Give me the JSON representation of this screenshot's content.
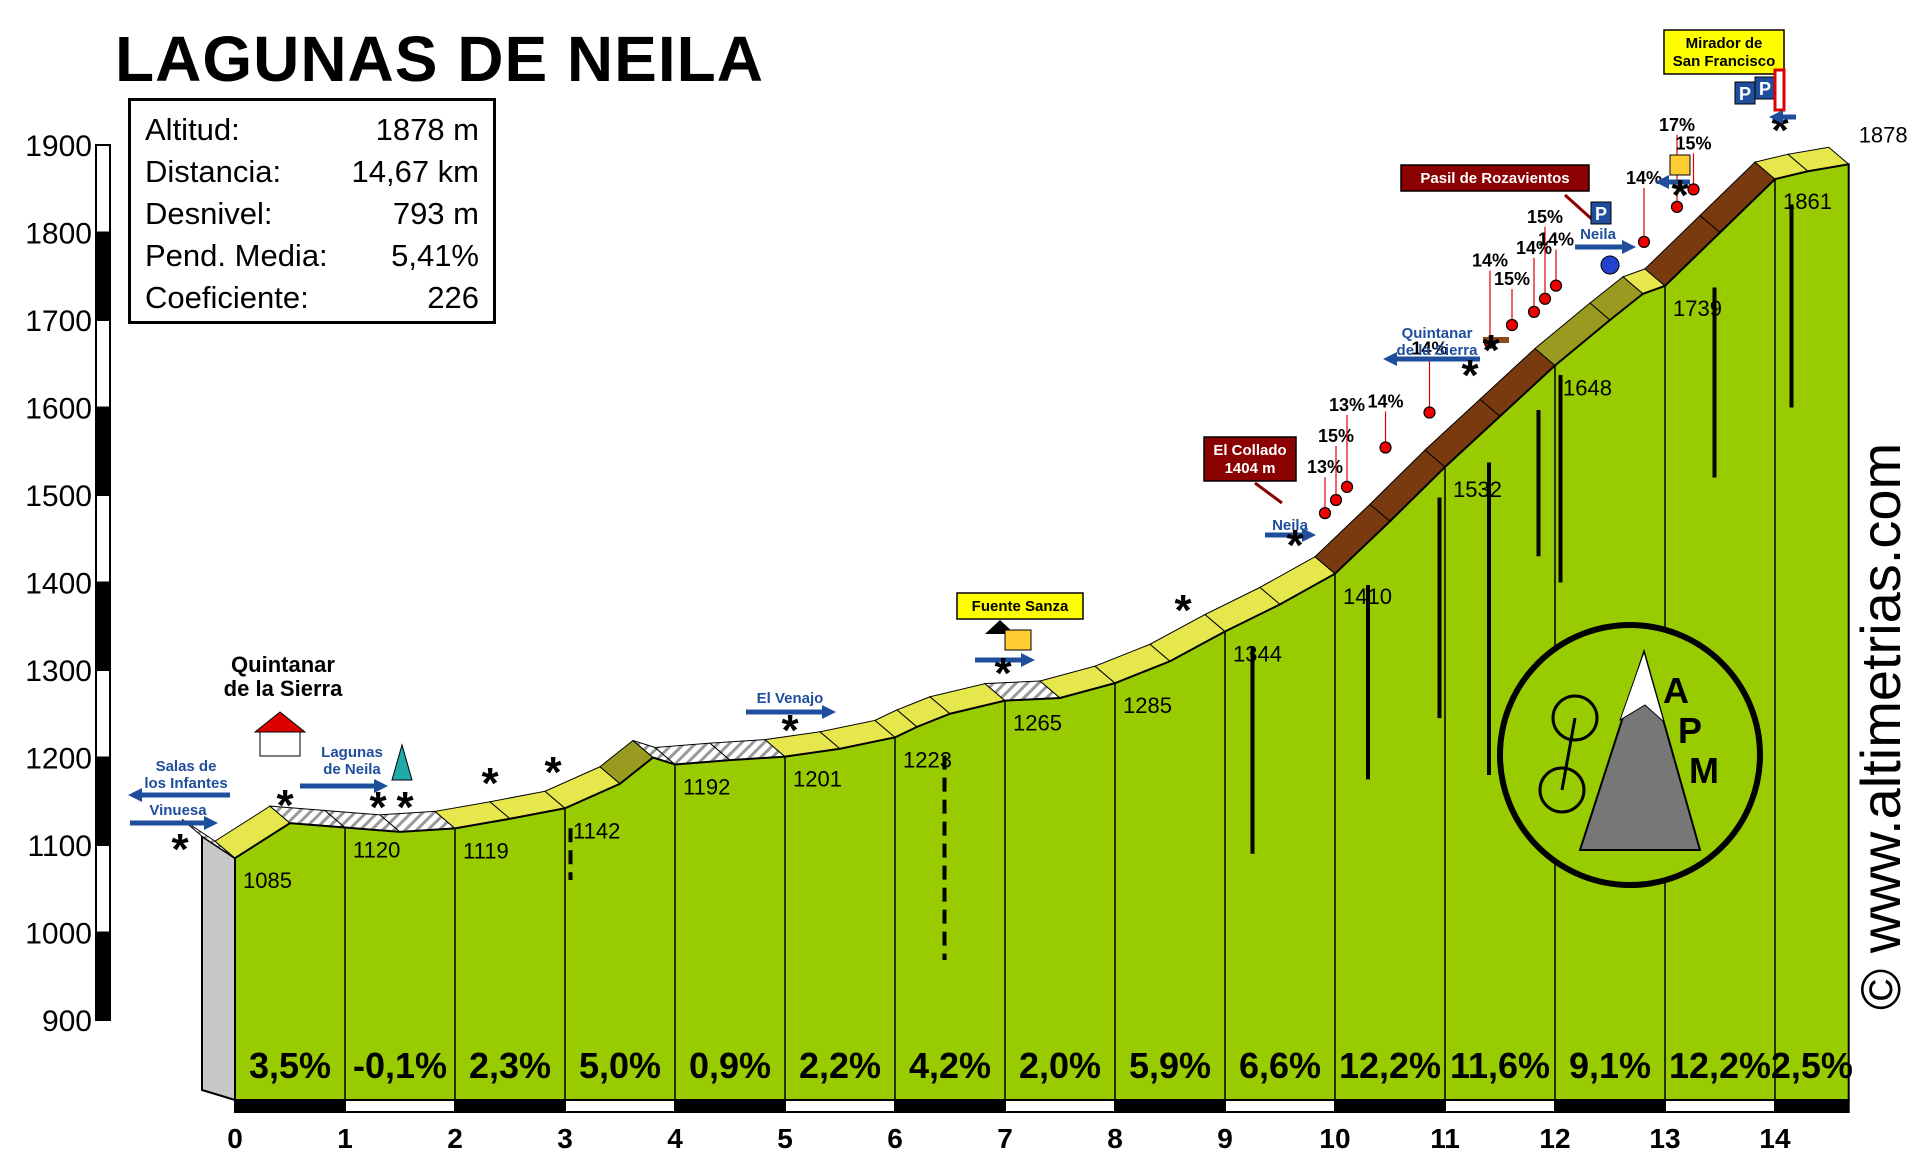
{
  "title": "LAGUNAS DE NEILA",
  "stats": [
    {
      "label": "Altitud:",
      "value": "1878 m"
    },
    {
      "label": "Distancia:",
      "value": "14,67 km"
    },
    {
      "label": "Desnivel:",
      "value": "793 m"
    },
    {
      "label": "Pend. Media:",
      "value": "5,41%"
    },
    {
      "label": "Coeficiente:",
      "value": "226"
    }
  ],
  "watermark": "© www.altimetrias.com",
  "logo_letters": [
    "A",
    "P",
    "M"
  ],
  "colors": {
    "profile": "#99CC00",
    "profile_dark": "#6B8F00",
    "band_yellow": "#E6E64D",
    "band_brown": "#7A3A10",
    "band_olive": "#9A9A20",
    "label_red": "#8B0000",
    "arrow_blue": "#1F4E9C",
    "label_yellow": "#FFFF00"
  },
  "chart_data": {
    "type": "area",
    "x_ticks": [
      "0",
      "1",
      "2",
      "3",
      "4",
      "5",
      "6",
      "7",
      "8",
      "9",
      "10",
      "11",
      "12",
      "13",
      "14"
    ],
    "y_ticks": [
      "900",
      "1000",
      "1100",
      "1200",
      "1300",
      "1400",
      "1500",
      "1600",
      "1700",
      "1800",
      "1900"
    ],
    "xlim": [
      0,
      14.67
    ],
    "ylim": [
      900,
      1900
    ],
    "profile": [
      [
        -0.3,
        1110
      ],
      [
        0,
        1085
      ],
      [
        0.5,
        1125
      ],
      [
        1,
        1120
      ],
      [
        1.5,
        1115
      ],
      [
        2,
        1119
      ],
      [
        2.5,
        1130
      ],
      [
        3,
        1142
      ],
      [
        3.5,
        1170
      ],
      [
        3.8,
        1200
      ],
      [
        4,
        1192
      ],
      [
        4.5,
        1197
      ],
      [
        5,
        1201
      ],
      [
        5.5,
        1210
      ],
      [
        6,
        1223
      ],
      [
        6.2,
        1235
      ],
      [
        6.5,
        1250
      ],
      [
        7,
        1265
      ],
      [
        7.5,
        1268
      ],
      [
        8,
        1285
      ],
      [
        8.5,
        1310
      ],
      [
        9,
        1344
      ],
      [
        9.5,
        1375
      ],
      [
        10,
        1410
      ],
      [
        10.5,
        1470
      ],
      [
        11,
        1532
      ],
      [
        11.5,
        1590
      ],
      [
        12,
        1648
      ],
      [
        12.5,
        1700
      ],
      [
        12.8,
        1730
      ],
      [
        13,
        1739
      ],
      [
        13.5,
        1800
      ],
      [
        14,
        1861
      ],
      [
        14.3,
        1870
      ],
      [
        14.67,
        1878
      ]
    ],
    "point_labels": [
      {
        "x": 0,
        "y": 1085,
        "text": "1085"
      },
      {
        "x": 1,
        "y": 1120,
        "text": "1120"
      },
      {
        "x": 2,
        "y": 1119,
        "text": "1119"
      },
      {
        "x": 3,
        "y": 1142,
        "text": "1142"
      },
      {
        "x": 4,
        "y": 1192,
        "text": "1192"
      },
      {
        "x": 5,
        "y": 1201,
        "text": "1201"
      },
      {
        "x": 6,
        "y": 1223,
        "text": "1223"
      },
      {
        "x": 7,
        "y": 1265,
        "text": "1265"
      },
      {
        "x": 8,
        "y": 1285,
        "text": "1285"
      },
      {
        "x": 9,
        "y": 1344,
        "text": "1344"
      },
      {
        "x": 10,
        "y": 1410,
        "text": "1410"
      },
      {
        "x": 11,
        "y": 1532,
        "text": "1532"
      },
      {
        "x": 12,
        "y": 1648,
        "text": "1648"
      },
      {
        "x": 13,
        "y": 1739,
        "text": "1739"
      },
      {
        "x": 14,
        "y": 1861,
        "text": "1861"
      },
      {
        "x": 14.67,
        "y": 1878,
        "text": "1878"
      }
    ],
    "segments": [
      {
        "from": 0,
        "to": 1,
        "text": "3,5%"
      },
      {
        "from": 1,
        "to": 2,
        "text": "-0,1%"
      },
      {
        "from": 2,
        "to": 3,
        "text": "2,3%"
      },
      {
        "from": 3,
        "to": 4,
        "text": "5,0%"
      },
      {
        "from": 4,
        "to": 5,
        "text": "0,9%"
      },
      {
        "from": 5,
        "to": 6,
        "text": "2,2%"
      },
      {
        "from": 6,
        "to": 7,
        "text": "4,2%"
      },
      {
        "from": 7,
        "to": 8,
        "text": "2,0%"
      },
      {
        "from": 8,
        "to": 9,
        "text": "5,9%"
      },
      {
        "from": 9,
        "to": 10,
        "text": "6,6%"
      },
      {
        "from": 10,
        "to": 11,
        "text": "12,2%"
      },
      {
        "from": 11,
        "to": 12,
        "text": "11,6%"
      },
      {
        "from": 12,
        "to": 13,
        "text": "9,1%"
      },
      {
        "from": 13,
        "to": 14,
        "text": "12,2%"
      },
      {
        "from": 14,
        "to": 14.67,
        "text": "2,5%"
      }
    ],
    "grades": [
      {
        "x": 10.0,
        "y": 1465,
        "text": "13%"
      },
      {
        "x": 10.1,
        "y": 1480,
        "text": "15%"
      },
      {
        "x": 10.2,
        "y": 1495,
        "text": "13%"
      },
      {
        "x": 10.55,
        "y": 1540,
        "text": "14%"
      },
      {
        "x": 10.95,
        "y": 1580,
        "text": "14%"
      },
      {
        "x": 11.5,
        "y": 1660,
        "text": "14%"
      },
      {
        "x": 11.7,
        "y": 1680,
        "text": "15%"
      },
      {
        "x": 11.9,
        "y": 1695,
        "text": "14%"
      },
      {
        "x": 12.0,
        "y": 1710,
        "text": "15%"
      },
      {
        "x": 12.1,
        "y": 1725,
        "text": "14%"
      },
      {
        "x": 12.9,
        "y": 1775,
        "text": "14%"
      },
      {
        "x": 13.2,
        "y": 1815,
        "text": "17%"
      },
      {
        "x": 13.35,
        "y": 1835,
        "text": "15%"
      }
    ],
    "places": [
      {
        "text": "Quintanar de la Sierra",
        "lines": [
          "Quintanar",
          "de la Sierra"
        ]
      },
      {
        "text": "Salas de los Infantes",
        "lines": [
          "Salas de",
          "los Infantes"
        ]
      },
      {
        "text": "Vinuesa"
      },
      {
        "text": "Lagunas de Neila",
        "lines": [
          "Lagunas",
          "de Neila"
        ]
      },
      {
        "text": "El Venajo"
      },
      {
        "text": "Fuente Sanza"
      },
      {
        "text": "El Collado 1404 m",
        "lines": [
          "El Collado",
          "1404 m"
        ]
      },
      {
        "text": "Neila"
      },
      {
        "text": "Quintanar de la Sierra",
        "lines": [
          "Quintanar",
          "de la Sierra"
        ]
      },
      {
        "text": "Pasil de Rozavientos"
      },
      {
        "text": "Neila"
      },
      {
        "text": "Mirador de San Francisco",
        "lines": [
          "Mirador de",
          "San Francisco"
        ]
      }
    ]
  }
}
